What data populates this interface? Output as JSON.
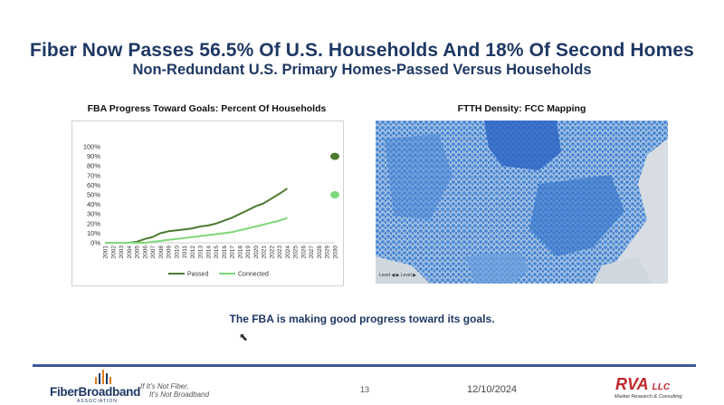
{
  "slide": {
    "title": "Fiber Now Passes 56.5% Of U.S. Households And 18% Of Second Homes",
    "subtitle": "Non-Redundant U.S. Primary Homes-Passed Versus Households",
    "left_panel_title": "FBA Progress Toward Goals:  Percent Of Households",
    "right_panel_title": "FTTH Density: FCC Mapping",
    "caption": "The FBA is making good progress toward its goals.",
    "map_attribution": "Level ◀ ▶ Level ▶",
    "page_number": "13",
    "date": "12/10/2024"
  },
  "footer": {
    "logo_name": "FiberBroadband",
    "logo_sub": "ASSOCIATION",
    "tagline_1": "If It's Not Fiber,",
    "tagline_2": "It's Not Broadband",
    "rva_name": "RVA",
    "rva_llc": "LLC",
    "rva_sub": "Market Research & Consulting"
  },
  "colors": {
    "title": "#1f3864",
    "passed": "#4a7a2e",
    "connected": "#7ed87a",
    "map_fiber": "#3e7fd1",
    "footer_line": "#3b5a98",
    "rva": "#c0272d"
  },
  "chart_data": {
    "type": "line",
    "title": "FBA Progress Toward Goals:  Percent Of Households",
    "x": [
      "2001",
      "2002",
      "2003",
      "2004",
      "2005",
      "2006",
      "2007",
      "2008",
      "2009",
      "2010",
      "2011",
      "2012",
      "2013",
      "2014",
      "2015",
      "2016",
      "2017",
      "2018",
      "2019",
      "2020",
      "2021",
      "2022",
      "2023",
      "2024",
      "2025",
      "2026",
      "2027",
      "2028",
      "2029",
      "2030"
    ],
    "ylim": [
      0,
      100
    ],
    "y_ticks": [
      "0%",
      "10%",
      "20%",
      "30%",
      "40%",
      "50%",
      "60%",
      "70%",
      "80%",
      "90%",
      "100%"
    ],
    "series": [
      {
        "name": "Passed",
        "values": [
          0,
          0,
          0,
          0,
          1,
          4,
          6,
          10,
          12,
          13,
          14,
          15,
          17,
          18,
          20,
          23,
          26,
          30,
          34,
          38,
          41,
          46,
          51,
          56.5,
          null,
          null,
          null,
          null,
          null,
          null
        ]
      },
      {
        "name": "Connected",
        "values": [
          0,
          0,
          0,
          0,
          0,
          0,
          1,
          2,
          3,
          4,
          5,
          6,
          7,
          8,
          9,
          10,
          11,
          13,
          15,
          17,
          19,
          21,
          23,
          26,
          null,
          null,
          null,
          null,
          null,
          null
        ]
      }
    ],
    "goals": [
      {
        "series": "Passed",
        "x": "2030",
        "value": 90
      },
      {
        "series": "Connected",
        "x": "2030",
        "value": 50
      }
    ],
    "legend_position": "bottom",
    "grid": false
  }
}
